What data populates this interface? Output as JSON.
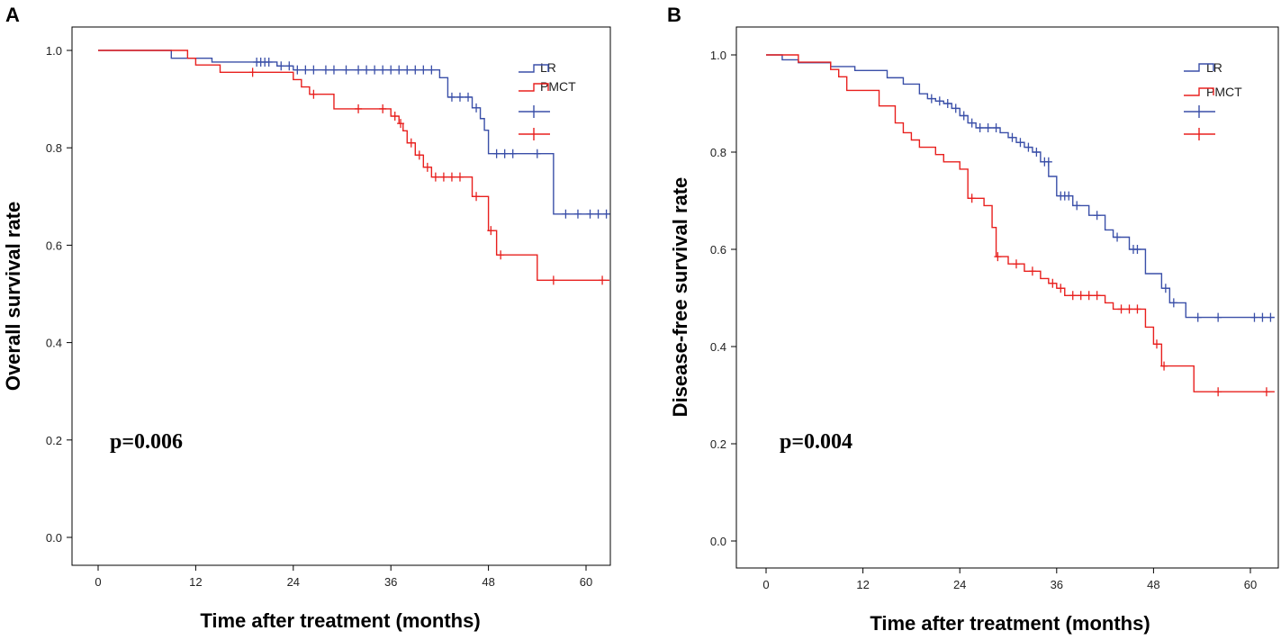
{
  "chart_data": [
    {
      "panel": "A",
      "type": "line",
      "subtype": "kaplan-meier step",
      "xlabel": "Time after treatment (months)",
      "ylabel": "Overall survival rate",
      "xlim": [
        -6,
        63
      ],
      "ylim": [
        -0.05,
        1.05
      ],
      "xticks": [
        0,
        12,
        24,
        36,
        48,
        60
      ],
      "yticks": [
        "0.0",
        "0.2",
        "0.4",
        "0.6",
        "0.8",
        "1.0"
      ],
      "annotation": "p=0.006",
      "legend": {
        "position": "top-right",
        "entries": [
          {
            "label": "LR",
            "color": "#3a4fa8",
            "kind": "line"
          },
          {
            "label": "PMCT",
            "color": "#e8201e",
            "kind": "line"
          },
          {
            "label": "",
            "color": "#3a4fa8",
            "kind": "censor"
          },
          {
            "label": "",
            "color": "#e8201e",
            "kind": "censor"
          }
        ]
      },
      "series": [
        {
          "name": "LR",
          "color": "#3a4fa8",
          "steps": [
            [
              0,
              1.0
            ],
            [
              9,
              0.984
            ],
            [
              14,
              0.976
            ],
            [
              22,
              0.968
            ],
            [
              24,
              0.96
            ],
            [
              42,
              0.944
            ],
            [
              43,
              0.904
            ],
            [
              46,
              0.882
            ],
            [
              47,
              0.86
            ],
            [
              47.5,
              0.836
            ],
            [
              48,
              0.788
            ],
            [
              56,
              0.664
            ],
            [
              63,
              0.664
            ]
          ],
          "censored": [
            [
              19.5,
              0.976
            ],
            [
              20,
              0.976
            ],
            [
              20.5,
              0.976
            ],
            [
              21,
              0.976
            ],
            [
              22.5,
              0.968
            ],
            [
              23.5,
              0.968
            ],
            [
              24.5,
              0.96
            ],
            [
              25.5,
              0.96
            ],
            [
              26.5,
              0.96
            ],
            [
              28,
              0.96
            ],
            [
              29,
              0.96
            ],
            [
              30.5,
              0.96
            ],
            [
              32,
              0.96
            ],
            [
              33,
              0.96
            ],
            [
              34,
              0.96
            ],
            [
              35,
              0.96
            ],
            [
              36,
              0.96
            ],
            [
              37,
              0.96
            ],
            [
              38,
              0.96
            ],
            [
              39,
              0.96
            ],
            [
              40,
              0.96
            ],
            [
              41,
              0.96
            ],
            [
              43.5,
              0.904
            ],
            [
              44.5,
              0.904
            ],
            [
              45.5,
              0.904
            ],
            [
              46.5,
              0.882
            ],
            [
              49,
              0.788
            ],
            [
              50,
              0.788
            ],
            [
              51,
              0.788
            ],
            [
              54,
              0.788
            ],
            [
              57.5,
              0.664
            ],
            [
              59,
              0.664
            ],
            [
              60.5,
              0.664
            ],
            [
              61.5,
              0.664
            ],
            [
              62.5,
              0.664
            ]
          ]
        },
        {
          "name": "PMCT",
          "color": "#e8201e",
          "steps": [
            [
              0,
              1.0
            ],
            [
              11,
              0.984
            ],
            [
              12,
              0.97
            ],
            [
              15,
              0.955
            ],
            [
              24,
              0.94
            ],
            [
              25,
              0.925
            ],
            [
              26,
              0.91
            ],
            [
              29,
              0.88
            ],
            [
              36,
              0.865
            ],
            [
              37,
              0.85
            ],
            [
              37.5,
              0.835
            ],
            [
              38,
              0.81
            ],
            [
              39,
              0.785
            ],
            [
              40,
              0.76
            ],
            [
              41,
              0.74
            ],
            [
              46,
              0.7
            ],
            [
              48,
              0.63
            ],
            [
              49,
              0.58
            ],
            [
              54,
              0.528
            ],
            [
              63,
              0.528
            ]
          ],
          "censored": [
            [
              19,
              0.955
            ],
            [
              26.5,
              0.91
            ],
            [
              32,
              0.88
            ],
            [
              35,
              0.88
            ],
            [
              36.5,
              0.865
            ],
            [
              37.2,
              0.85
            ],
            [
              38.5,
              0.81
            ],
            [
              39.5,
              0.785
            ],
            [
              40.5,
              0.76
            ],
            [
              41.5,
              0.74
            ],
            [
              42.5,
              0.74
            ],
            [
              43.5,
              0.74
            ],
            [
              44.5,
              0.74
            ],
            [
              46.5,
              0.7
            ],
            [
              48.3,
              0.63
            ],
            [
              49.5,
              0.58
            ],
            [
              56,
              0.528
            ],
            [
              62,
              0.528
            ]
          ]
        }
      ]
    },
    {
      "panel": "B",
      "type": "line",
      "subtype": "kaplan-meier step",
      "xlabel": "Time after treatment (months)",
      "ylabel": "Disease-free survival rate",
      "xlim": [
        -6,
        63
      ],
      "ylim": [
        -0.05,
        1.05
      ],
      "xticks": [
        0,
        12,
        24,
        36,
        48,
        60
      ],
      "yticks": [
        "0.0",
        "0.2",
        "0.4",
        "0.6",
        "0.8",
        "1.0"
      ],
      "annotation": "p=0.004",
      "legend": {
        "position": "top-right",
        "entries": [
          {
            "label": "LR",
            "color": "#3a4fa8",
            "kind": "line"
          },
          {
            "label": "PMCT",
            "color": "#e8201e",
            "kind": "line"
          },
          {
            "label": "",
            "color": "#3a4fa8",
            "kind": "censor"
          },
          {
            "label": "",
            "color": "#e8201e",
            "kind": "censor"
          }
        ]
      },
      "series": [
        {
          "name": "LR",
          "color": "#3a4fa8",
          "steps": [
            [
              0,
              1.0
            ],
            [
              2,
              0.99
            ],
            [
              4,
              0.984
            ],
            [
              8,
              0.976
            ],
            [
              11,
              0.968
            ],
            [
              15,
              0.953
            ],
            [
              17,
              0.94
            ],
            [
              19,
              0.92
            ],
            [
              20,
              0.91
            ],
            [
              21,
              0.905
            ],
            [
              22,
              0.9
            ],
            [
              23,
              0.89
            ],
            [
              24,
              0.875
            ],
            [
              25,
              0.86
            ],
            [
              26,
              0.85
            ],
            [
              29,
              0.84
            ],
            [
              30,
              0.83
            ],
            [
              31,
              0.82
            ],
            [
              32,
              0.81
            ],
            [
              33,
              0.8
            ],
            [
              34,
              0.78
            ],
            [
              35,
              0.75
            ],
            [
              36,
              0.71
            ],
            [
              38,
              0.69
            ],
            [
              40,
              0.67
            ],
            [
              42,
              0.64
            ],
            [
              43,
              0.625
            ],
            [
              45,
              0.6
            ],
            [
              47,
              0.55
            ],
            [
              49,
              0.52
            ],
            [
              50,
              0.49
            ],
            [
              52,
              0.46
            ],
            [
              63,
              0.46
            ]
          ],
          "censored": [
            [
              20.5,
              0.91
            ],
            [
              21.5,
              0.905
            ],
            [
              22.5,
              0.9
            ],
            [
              23.5,
              0.89
            ],
            [
              24.5,
              0.875
            ],
            [
              25.5,
              0.86
            ],
            [
              26.5,
              0.85
            ],
            [
              27.5,
              0.85
            ],
            [
              28.5,
              0.85
            ],
            [
              30.5,
              0.83
            ],
            [
              31.5,
              0.82
            ],
            [
              32.5,
              0.81
            ],
            [
              33.5,
              0.8
            ],
            [
              34.5,
              0.78
            ],
            [
              35,
              0.78
            ],
            [
              36.5,
              0.71
            ],
            [
              37,
              0.71
            ],
            [
              37.5,
              0.71
            ],
            [
              38.5,
              0.69
            ],
            [
              41,
              0.67
            ],
            [
              43.5,
              0.625
            ],
            [
              45.5,
              0.6
            ],
            [
              46,
              0.6
            ],
            [
              49.5,
              0.52
            ],
            [
              50.5,
              0.49
            ],
            [
              53.5,
              0.46
            ],
            [
              56,
              0.46
            ],
            [
              60.5,
              0.46
            ],
            [
              61.5,
              0.46
            ],
            [
              62.5,
              0.46
            ]
          ]
        },
        {
          "name": "PMCT",
          "color": "#e8201e",
          "steps": [
            [
              0,
              1.0
            ],
            [
              4,
              0.985
            ],
            [
              8,
              0.97
            ],
            [
              9,
              0.955
            ],
            [
              10,
              0.927
            ],
            [
              14,
              0.895
            ],
            [
              16,
              0.86
            ],
            [
              17,
              0.84
            ],
            [
              18,
              0.825
            ],
            [
              19,
              0.81
            ],
            [
              21,
              0.795
            ],
            [
              22,
              0.78
            ],
            [
              24,
              0.765
            ],
            [
              25,
              0.705
            ],
            [
              27,
              0.69
            ],
            [
              28,
              0.645
            ],
            [
              28.5,
              0.585
            ],
            [
              30,
              0.57
            ],
            [
              32,
              0.555
            ],
            [
              34,
              0.54
            ],
            [
              35,
              0.53
            ],
            [
              36,
              0.52
            ],
            [
              37,
              0.505
            ],
            [
              42,
              0.49
            ],
            [
              43,
              0.477
            ],
            [
              47,
              0.44
            ],
            [
              48,
              0.405
            ],
            [
              49,
              0.36
            ],
            [
              53,
              0.307
            ],
            [
              63,
              0.307
            ]
          ],
          "censored": [
            [
              25.5,
              0.705
            ],
            [
              28.7,
              0.585
            ],
            [
              31,
              0.57
            ],
            [
              33,
              0.555
            ],
            [
              35.5,
              0.53
            ],
            [
              36.5,
              0.52
            ],
            [
              38,
              0.505
            ],
            [
              39,
              0.505
            ],
            [
              40,
              0.505
            ],
            [
              41,
              0.505
            ],
            [
              44,
              0.477
            ],
            [
              45,
              0.477
            ],
            [
              46,
              0.477
            ],
            [
              48.4,
              0.405
            ],
            [
              49.3,
              0.36
            ],
            [
              56,
              0.307
            ],
            [
              62,
              0.307
            ]
          ]
        }
      ]
    }
  ]
}
